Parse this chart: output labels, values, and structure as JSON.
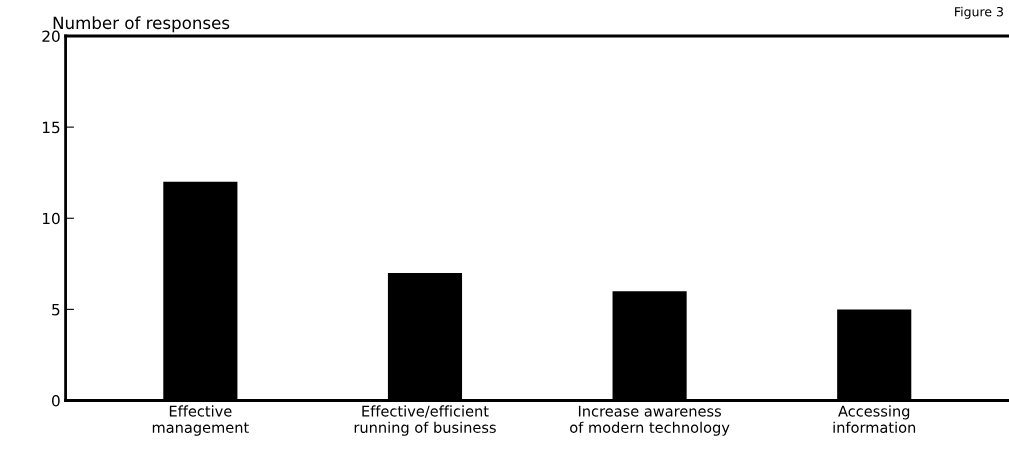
{
  "chart_data": {
    "type": "bar",
    "ylabel": "Number of responses",
    "categories": [
      "Effective\nmanagement",
      "Effective/efficient\nrunning of business",
      "Increase awareness\nof modern technology",
      "Accessing\ninformation"
    ],
    "values": [
      12,
      7,
      6,
      5
    ],
    "color": "#000000",
    "ylim": [
      0,
      20
    ],
    "yticks": [
      0,
      5,
      10,
      15,
      20
    ],
    "grid": false,
    "annotations": [
      "Figure 3"
    ]
  }
}
